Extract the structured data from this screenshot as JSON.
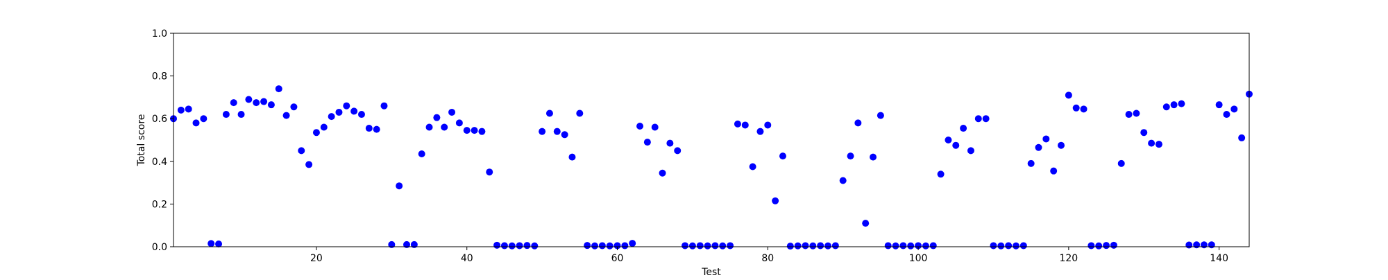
{
  "chart_data": {
    "type": "scatter",
    "title": "",
    "xlabel": "Test",
    "ylabel": "Total score",
    "xlim": [
      1,
      144
    ],
    "ylim": [
      0.0,
      1.0
    ],
    "x_ticks": [
      20,
      40,
      60,
      80,
      100,
      120,
      140
    ],
    "x_tick_labels": [
      "20",
      "40",
      "60",
      "80",
      "100",
      "120",
      "140"
    ],
    "y_ticks": [
      0.0,
      0.2,
      0.4,
      0.6,
      0.8,
      1.0
    ],
    "y_tick_labels": [
      "0.0",
      "0.2",
      "0.4",
      "0.6",
      "0.8",
      "1.0"
    ],
    "grid": false,
    "marker_color": "#0000ff",
    "series": [
      {
        "x": [
          1,
          2,
          3,
          4,
          5,
          6,
          7,
          8,
          9,
          10,
          11,
          12,
          13,
          14,
          15,
          16,
          17,
          18,
          19,
          20,
          21,
          22,
          23,
          24,
          25,
          26,
          27,
          28,
          29,
          30,
          31,
          32,
          33,
          34,
          35,
          36,
          37,
          38,
          39,
          40,
          41,
          42,
          43,
          44,
          45,
          46,
          47,
          48,
          49,
          50,
          51,
          52,
          53,
          54,
          55,
          56,
          57,
          58,
          59,
          60,
          61,
          62,
          63,
          64,
          65,
          66,
          67,
          68,
          69,
          70,
          71,
          72,
          73,
          74,
          75,
          76,
          77,
          78,
          79,
          80,
          81,
          82,
          83,
          84,
          85,
          86,
          87,
          88,
          89,
          90,
          91,
          92,
          93,
          94,
          95,
          96,
          97,
          98,
          99,
          100,
          101,
          102,
          103,
          104,
          105,
          106,
          107,
          108,
          109,
          110,
          111,
          112,
          113,
          114,
          115,
          116,
          117,
          118,
          119,
          120,
          121,
          122,
          123,
          124,
          125,
          126,
          127,
          128,
          129,
          130,
          131,
          132,
          133,
          134,
          135,
          136,
          137,
          138,
          139,
          140,
          141,
          142,
          143,
          144
        ],
        "y": [
          0.6,
          0.64,
          0.645,
          0.58,
          0.6,
          0.015,
          0.013,
          0.62,
          0.675,
          0.62,
          0.69,
          0.675,
          0.68,
          0.665,
          0.74,
          0.615,
          0.655,
          0.45,
          0.385,
          0.535,
          0.56,
          0.61,
          0.63,
          0.66,
          0.635,
          0.62,
          0.555,
          0.55,
          0.66,
          0.01,
          0.285,
          0.01,
          0.01,
          0.435,
          0.56,
          0.605,
          0.56,
          0.63,
          0.58,
          0.545,
          0.545,
          0.54,
          0.35,
          0.007,
          0.005,
          0.004,
          0.005,
          0.006,
          0.004,
          0.54,
          0.625,
          0.54,
          0.525,
          0.42,
          0.625,
          0.006,
          0.004,
          0.005,
          0.004,
          0.005,
          0.005,
          0.016,
          0.565,
          0.49,
          0.56,
          0.345,
          0.485,
          0.45,
          0.005,
          0.004,
          0.005,
          0.004,
          0.005,
          0.004,
          0.005,
          0.575,
          0.57,
          0.375,
          0.54,
          0.57,
          0.215,
          0.425,
          0.003,
          0.004,
          0.005,
          0.004,
          0.005,
          0.004,
          0.005,
          0.31,
          0.425,
          0.58,
          0.11,
          0.42,
          0.615,
          0.005,
          0.004,
          0.005,
          0.004,
          0.005,
          0.004,
          0.005,
          0.34,
          0.5,
          0.475,
          0.555,
          0.45,
          0.6,
          0.6,
          0.005,
          0.004,
          0.005,
          0.004,
          0.005,
          0.39,
          0.465,
          0.505,
          0.355,
          0.475,
          0.71,
          0.65,
          0.645,
          0.005,
          0.004,
          0.006,
          0.007,
          0.39,
          0.62,
          0.625,
          0.535,
          0.485,
          0.48,
          0.655,
          0.665,
          0.67,
          0.008,
          0.009,
          0.009,
          0.009,
          0.665,
          0.62,
          0.645,
          0.51,
          0.715
        ]
      }
    ]
  }
}
